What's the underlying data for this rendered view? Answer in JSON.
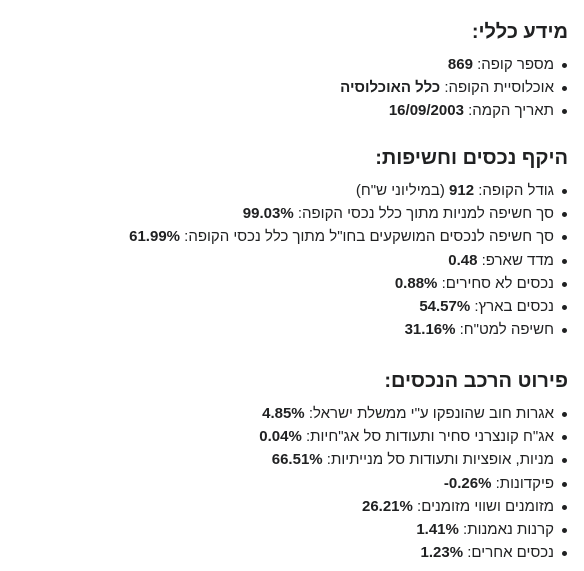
{
  "general": {
    "title": "מידע כללי:",
    "items": [
      {
        "label": "מספר קופה:",
        "value": "869"
      },
      {
        "label": "אוכלוסיית הקופה:",
        "value": "כלל האוכלוסיה"
      },
      {
        "label": "תאריך הקמה:",
        "value": "16/09/2003"
      }
    ]
  },
  "scope": {
    "title": "היקף נכסים וחשיפות:",
    "items": [
      {
        "label": "גודל הקופה:",
        "value": "912",
        "unit": "(במיליוני ש\"ח)"
      },
      {
        "label": "סך חשיפה למניות מתוך כלל נכסי הקופה:",
        "value": "99.03%"
      },
      {
        "label": "סך חשיפה לנכסים המושקעים בחו\"ל מתוך כלל נכסי הקופה:",
        "value": "61.99%"
      },
      {
        "label": "מדד שארפ:",
        "value": "0.48"
      },
      {
        "label": "נכסים לא סחירים:",
        "value": "0.88%"
      },
      {
        "label": "נכסים בארץ:",
        "value": "54.57%"
      },
      {
        "label": "חשיפה למט\"ח:",
        "value": "31.16%"
      }
    ]
  },
  "assets": {
    "title": "פירוט הרכב הנכסים:",
    "items": [
      {
        "label": "אגרות חוב שהונפקו ע\"י ממשלת ישראל:",
        "value": "4.85%"
      },
      {
        "label": "אג\"ח קונצרני סחיר ותעודות סל אג\"חיות:",
        "value": "0.04%"
      },
      {
        "label": "מניות, אופציות ותעודות סל מנייתיות:",
        "value": "66.51%"
      },
      {
        "label": "פיקדונות:",
        "value": "-0.26%"
      },
      {
        "label": "מזומנים ושווי מזומנים:",
        "value": "26.21%"
      },
      {
        "label": "קרנות נאמנות:",
        "value": "1.41%"
      },
      {
        "label": "נכסים אחרים:",
        "value": "1.23%"
      }
    ]
  }
}
